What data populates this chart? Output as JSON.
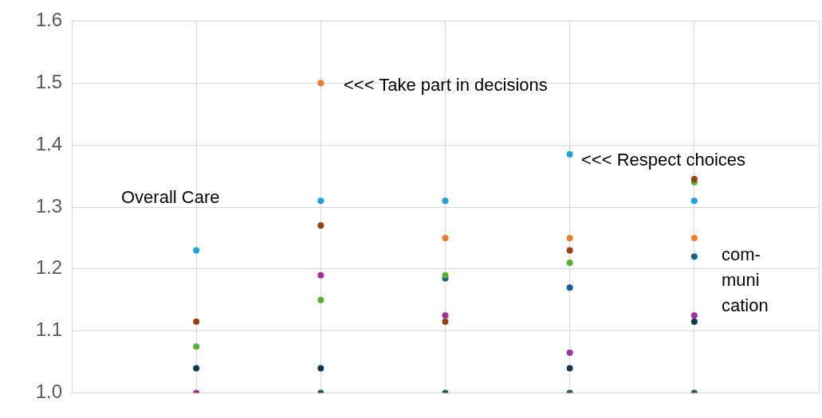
{
  "chart_data": {
    "type": "scatter",
    "categories": [
      null,
      null,
      null,
      null,
      null
    ],
    "series": [
      {
        "color": "#1aa3dd",
        "values": [
          1.23,
          1.31,
          1.31,
          1.385,
          1.31
        ]
      },
      {
        "color": "#f07a30",
        "values": [
          null,
          1.5,
          1.25,
          1.25,
          1.25
        ]
      },
      {
        "color": "#9a400f",
        "values": [
          1.115,
          1.27,
          1.115,
          1.23,
          1.345
        ]
      },
      {
        "color": "#5aaf2e",
        "values": [
          1.075,
          1.15,
          1.19,
          1.21,
          1.34
        ]
      },
      {
        "color": "#a3309a",
        "values": [
          1.0,
          1.19,
          1.125,
          1.065,
          1.125
        ]
      },
      {
        "color": "#1a5f8a",
        "values": [
          null,
          null,
          1.185,
          1.17,
          1.22
        ]
      },
      {
        "color": "#0f3b52",
        "values": [
          1.04,
          1.04,
          null,
          1.04,
          1.115
        ]
      },
      {
        "color": "#1d6b2a",
        "values": [
          null,
          1.0,
          1.0,
          1.0,
          1.0
        ]
      }
    ],
    "ylim": [
      1.0,
      1.6
    ],
    "yticks": [
      {
        "value": 1.0,
        "label": "1.0"
      },
      {
        "value": 1.1,
        "label": "1.1"
      },
      {
        "value": 1.2,
        "label": "1.2"
      },
      {
        "value": 1.3,
        "label": "1.3"
      },
      {
        "value": 1.4,
        "label": "1.4"
      },
      {
        "value": 1.5,
        "label": "1.5"
      },
      {
        "value": 1.6,
        "label": "1.6"
      }
    ],
    "grid": true,
    "legend": false,
    "marker": "circle",
    "annotations": [
      "Overall Care",
      "<<< Take part in decisions",
      "<<< Respect choices",
      "com-\nmuni\ncation"
    ]
  }
}
